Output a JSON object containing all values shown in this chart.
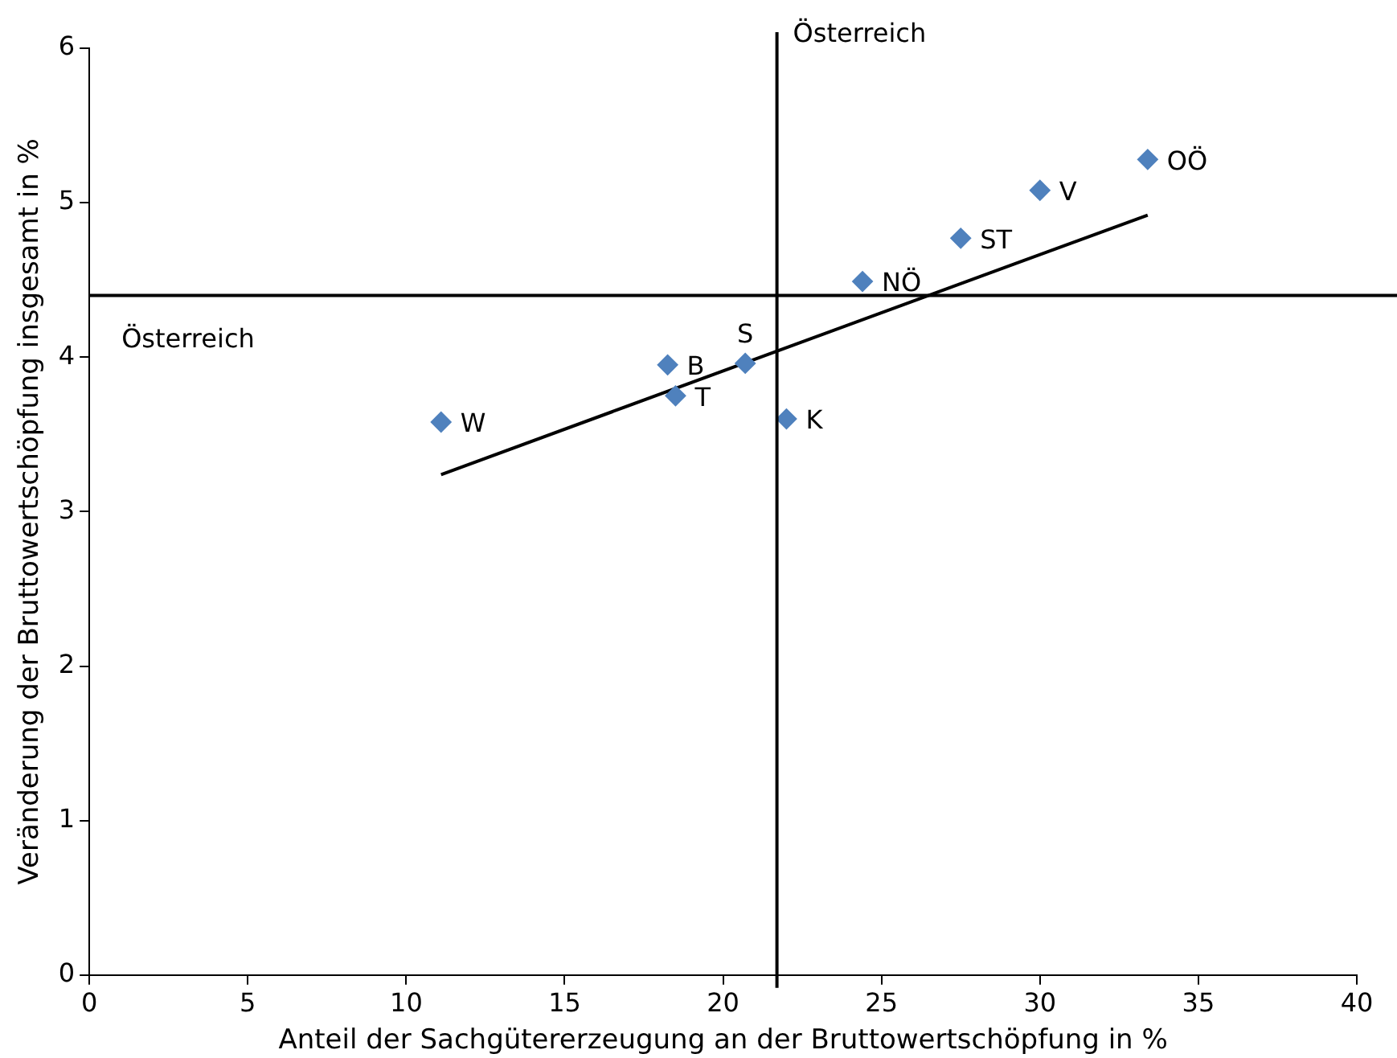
{
  "chart_data": {
    "type": "scatter",
    "xlabel": "Anteil der Sachgütererzeugung an der Bruttowertschöpfung in %",
    "ylabel": "Veränderung der Bruttowertschöpfung insgesamt in %",
    "xlim": [
      0,
      40
    ],
    "xticks": [
      0,
      5,
      10,
      15,
      20,
      25,
      30,
      35,
      40
    ],
    "ylim": [
      0,
      6
    ],
    "yticks": [
      0,
      1,
      2,
      3,
      4,
      5,
      6
    ],
    "grid": false,
    "legend": false,
    "marker": "diamond",
    "series": [
      {
        "type": "scatter",
        "color": "#4f81bd",
        "x": [
          11.1,
          18.25,
          18.5,
          20.7,
          22.0,
          24.4,
          27.5,
          30.0,
          33.4
        ],
        "values": [
          3.58,
          3.95,
          3.75,
          3.96,
          3.6,
          4.49,
          4.77,
          5.08,
          5.28
        ],
        "value_labels": [
          "W",
          "B",
          "T",
          "S",
          "K",
          "NÖ",
          "ST",
          "V",
          "OÖ"
        ]
      },
      {
        "type": "line",
        "color": "#000000",
        "x": [
          11.1,
          33.4
        ],
        "values": [
          3.24,
          4.92
        ],
        "marker": "none"
      }
    ],
    "ref_lines": [
      {
        "axis": "x",
        "value": 21.7,
        "label": "Österreich",
        "color": "#000000"
      },
      {
        "axis": "y",
        "value": 4.4,
        "label": "Österreich",
        "color": "#000000"
      }
    ]
  }
}
